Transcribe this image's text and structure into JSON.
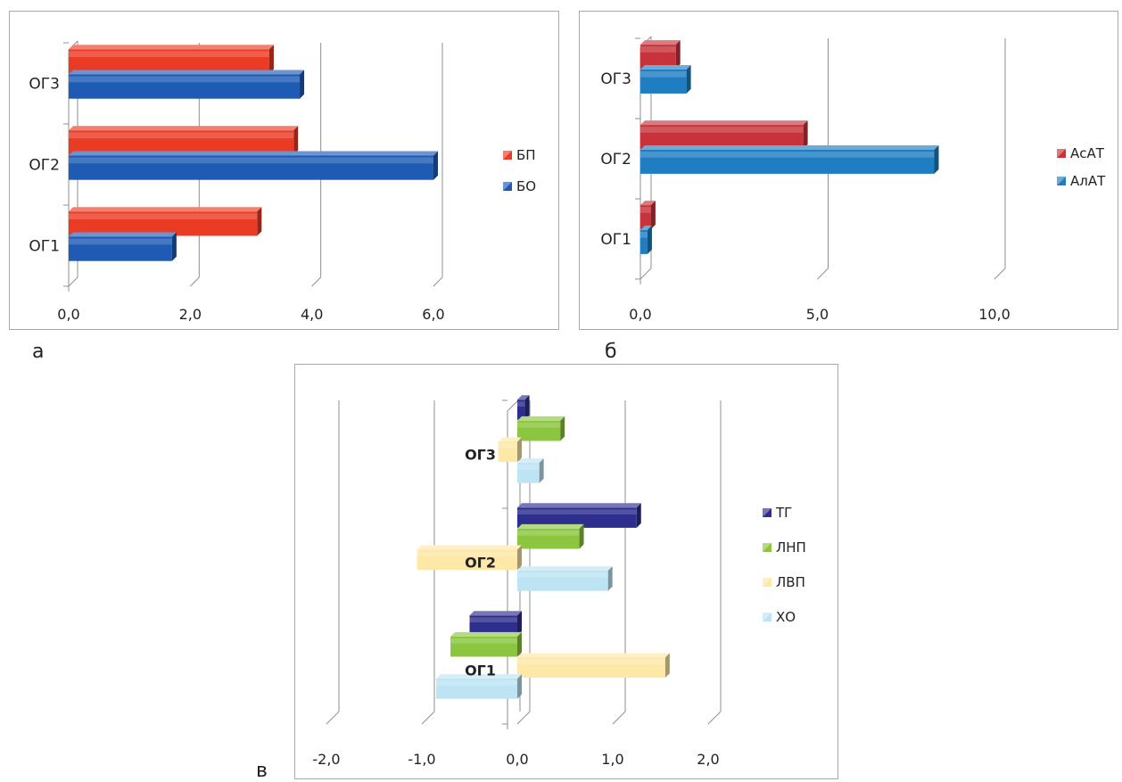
{
  "captions": {
    "a": "а",
    "b": "б",
    "v": "в"
  },
  "chart_data": [
    {
      "type": "bar",
      "orientation": "horizontal",
      "categories": [
        "ОГ1",
        "ОГ2",
        "ОГ3"
      ],
      "series": [
        {
          "name": "БО",
          "values": [
            1.7,
            6.0,
            3.8
          ],
          "color": "#1f5bb5"
        },
        {
          "name": "БП",
          "values": [
            3.1,
            3.7,
            3.3
          ],
          "color": "#ea3b24"
        }
      ],
      "xlim": [
        0,
        6
      ],
      "xticks": [
        "0,0",
        "2,0",
        "4,0",
        "6,0"
      ],
      "legend_position": "right",
      "grid": true
    },
    {
      "type": "bar",
      "orientation": "horizontal",
      "categories": [
        "ОГ1",
        "ОГ2",
        "ОГ3"
      ],
      "series": [
        {
          "name": "АлАТ",
          "values": [
            0.2,
            8.3,
            1.3
          ],
          "color": "#1f7ec2"
        },
        {
          "name": "АсАТ",
          "values": [
            0.3,
            4.6,
            1.0
          ],
          "color": "#c8323a"
        }
      ],
      "xlim": [
        0,
        10
      ],
      "xticks": [
        "0,0",
        "5,0",
        "10,0"
      ],
      "legend_position": "right",
      "grid": true
    },
    {
      "type": "bar",
      "orientation": "horizontal",
      "categories": [
        "ОГ1",
        "ОГ2",
        "ОГ3"
      ],
      "series": [
        {
          "name": "ХО",
          "values": [
            -0.85,
            0.95,
            0.23
          ],
          "color": "#bde4f2"
        },
        {
          "name": "ЛВП",
          "values": [
            1.55,
            -1.05,
            -0.2
          ],
          "color": "#fde8a8"
        },
        {
          "name": "ЛНП",
          "values": [
            -0.7,
            0.65,
            0.45
          ],
          "color": "#8cc63f"
        },
        {
          "name": "ТГ",
          "values": [
            -0.5,
            1.25,
            0.08
          ],
          "color": "#2e2e8f"
        }
      ],
      "xlim": [
        -2,
        2
      ],
      "xticks": [
        "-2,0",
        "-1,0",
        "0,0",
        "1,0",
        "2,0"
      ],
      "legend_position": "right",
      "grid": true
    }
  ]
}
